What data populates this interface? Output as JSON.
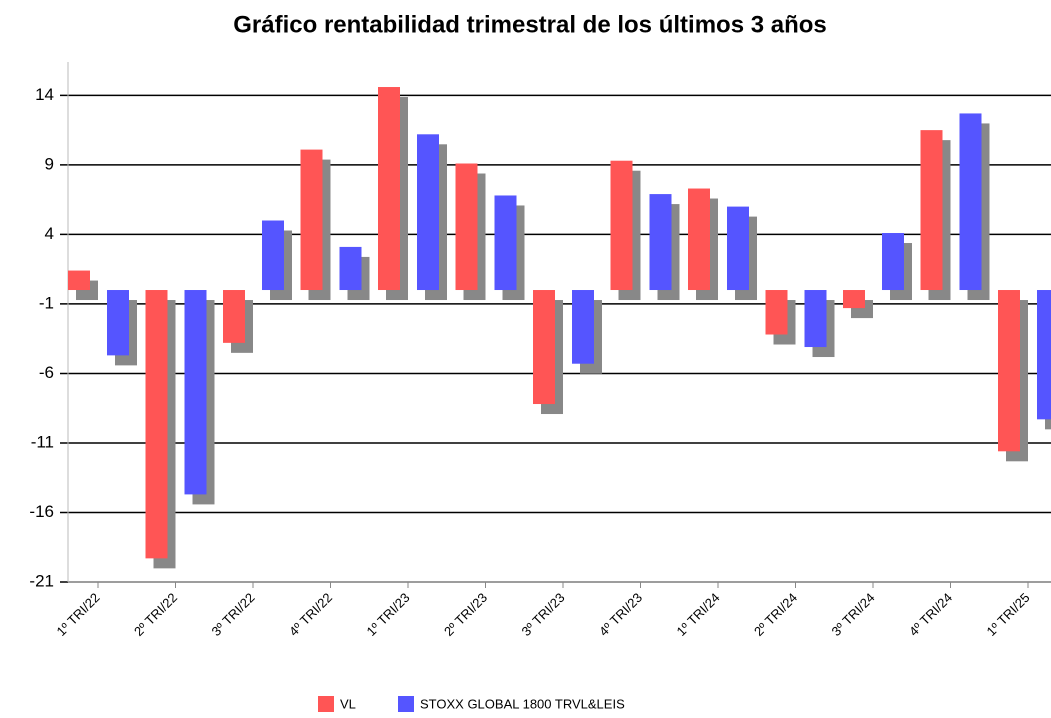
{
  "chart_data": {
    "type": "bar",
    "title": "Gráfico rentabilidad trimestral de los últimos 3 años",
    "categories": [
      "1º TRI/22",
      "2º TRI/22",
      "3º TRI/22",
      "4º TRI/22",
      "1º TRI/23",
      "2º TRI/23",
      "3º TRI/23",
      "4º TRI/23",
      "1º TRI/24",
      "2º TRI/24",
      "3º TRI/24",
      "4º TRI/24",
      "1º TRI/25"
    ],
    "series": [
      {
        "name": "VL",
        "color": "#ff5555",
        "values": [
          1.4,
          -19.3,
          -3.8,
          10.1,
          14.6,
          9.1,
          -8.2,
          9.3,
          7.3,
          -3.2,
          -1.3,
          11.5,
          -11.6
        ]
      },
      {
        "name": "STOXX GLOBAL 1800 TRVL&LEIS",
        "color": "#5555ff",
        "values": [
          -4.7,
          -14.7,
          5.0,
          3.1,
          11.2,
          6.8,
          -5.3,
          6.9,
          6.0,
          -4.1,
          4.1,
          12.7,
          -9.3
        ]
      }
    ],
    "ylim": [
      -21,
      16.4
    ],
    "yticks": [
      -21,
      -16,
      -11,
      -6,
      -1,
      4,
      9,
      14
    ],
    "grid": true,
    "legend": "bottom"
  }
}
